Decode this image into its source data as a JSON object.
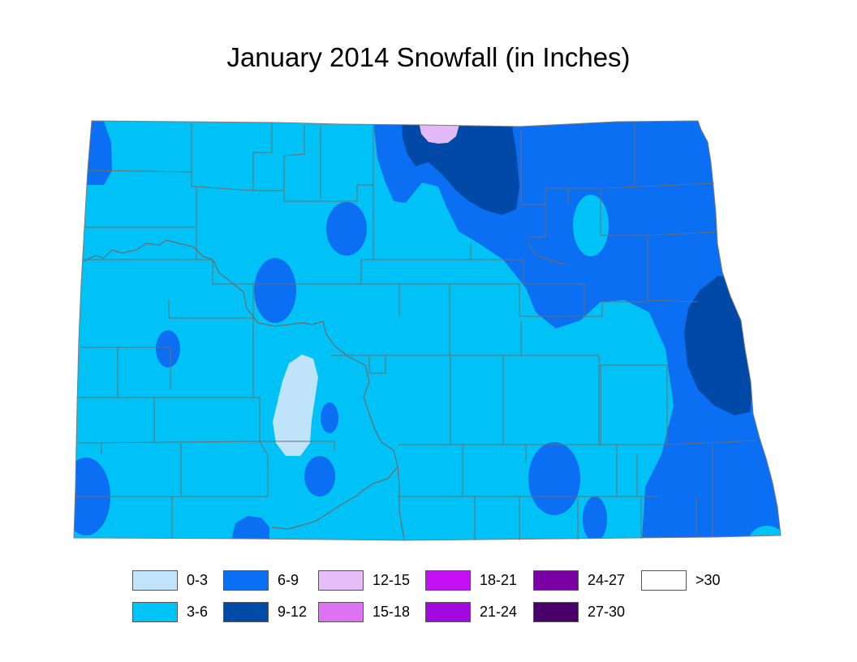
{
  "title": "January 2014 Snowfall (in Inches)",
  "map": {
    "region": "North Dakota",
    "colors": {
      "light_blue_0_3": "#bfe4fa",
      "cyan_3_6": "#00c2f7",
      "blue_6_9": "#0a6ff2",
      "navy_9_12": "#0049a6",
      "lavender_12_15": "#e3b9f7"
    }
  },
  "legend": {
    "items": [
      {
        "label": "0-3",
        "color": "#c1e4fb"
      },
      {
        "label": "3-6",
        "color": "#00c3f8"
      },
      {
        "label": "6-9",
        "color": "#0a6ff2"
      },
      {
        "label": "9-12",
        "color": "#004aa8"
      },
      {
        "label": "12-15",
        "color": "#e6bdf9"
      },
      {
        "label": "15-18",
        "color": "#dd73f2"
      },
      {
        "label": "18-21",
        "color": "#c40ff3"
      },
      {
        "label": "21-24",
        "color": "#a109e0"
      },
      {
        "label": "24-27",
        "color": "#7b00a4"
      },
      {
        "label": "27-30",
        "color": "#4a006b"
      },
      {
        "label": ">30",
        "color": "#ffffff"
      }
    ]
  }
}
